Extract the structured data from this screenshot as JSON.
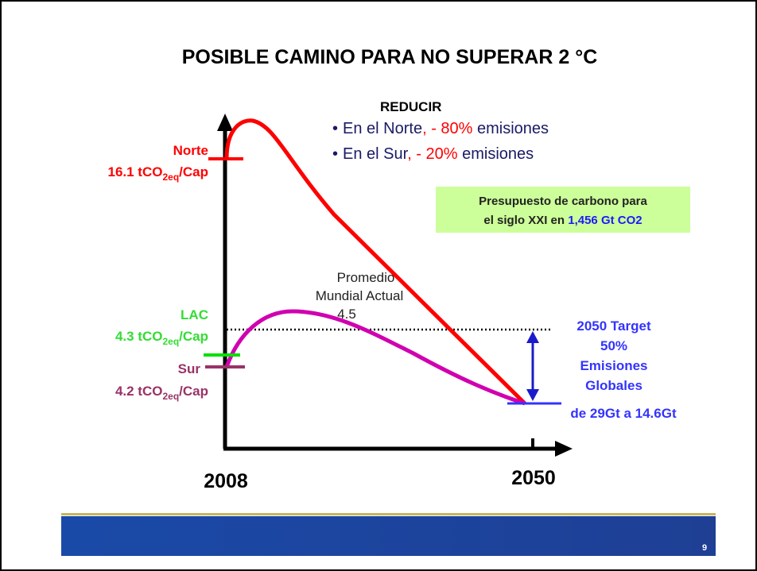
{
  "title": "POSIBLE  CAMINO PARA NO SUPERAR  2 °C",
  "reduce": {
    "heading": "REDUCIR",
    "bullet": "•",
    "items": [
      [
        "En el Norte",
        ", - 80%",
        " emisiones"
      ],
      [
        "En el Sur",
        ", - 20%",
        " emisiones"
      ]
    ]
  },
  "budget": [
    "Presupuesto de carbono para",
    "el siglo XXI en ",
    "1,456 Gt CO2"
  ],
  "norte": {
    "name": "Norte",
    "value": [
      "16.1 tCO",
      "2eq",
      "/Cap"
    ]
  },
  "lac": {
    "name": "LAC",
    "value": [
      "4.3 tCO",
      "2eq",
      "/Cap"
    ]
  },
  "sur": {
    "name": "Sur",
    "value": [
      "4.2 tCO",
      "2eq",
      "/Cap"
    ]
  },
  "average": [
    "Promedio",
    "Mundial Actual",
    "4.5"
  ],
  "target": [
    "2050 Target",
    "50%",
    "Emisiones",
    "Globales",
    "de 29Gt a 14.6Gt"
  ],
  "axis": [
    "2008",
    "2050"
  ],
  "page_number": "9"
}
